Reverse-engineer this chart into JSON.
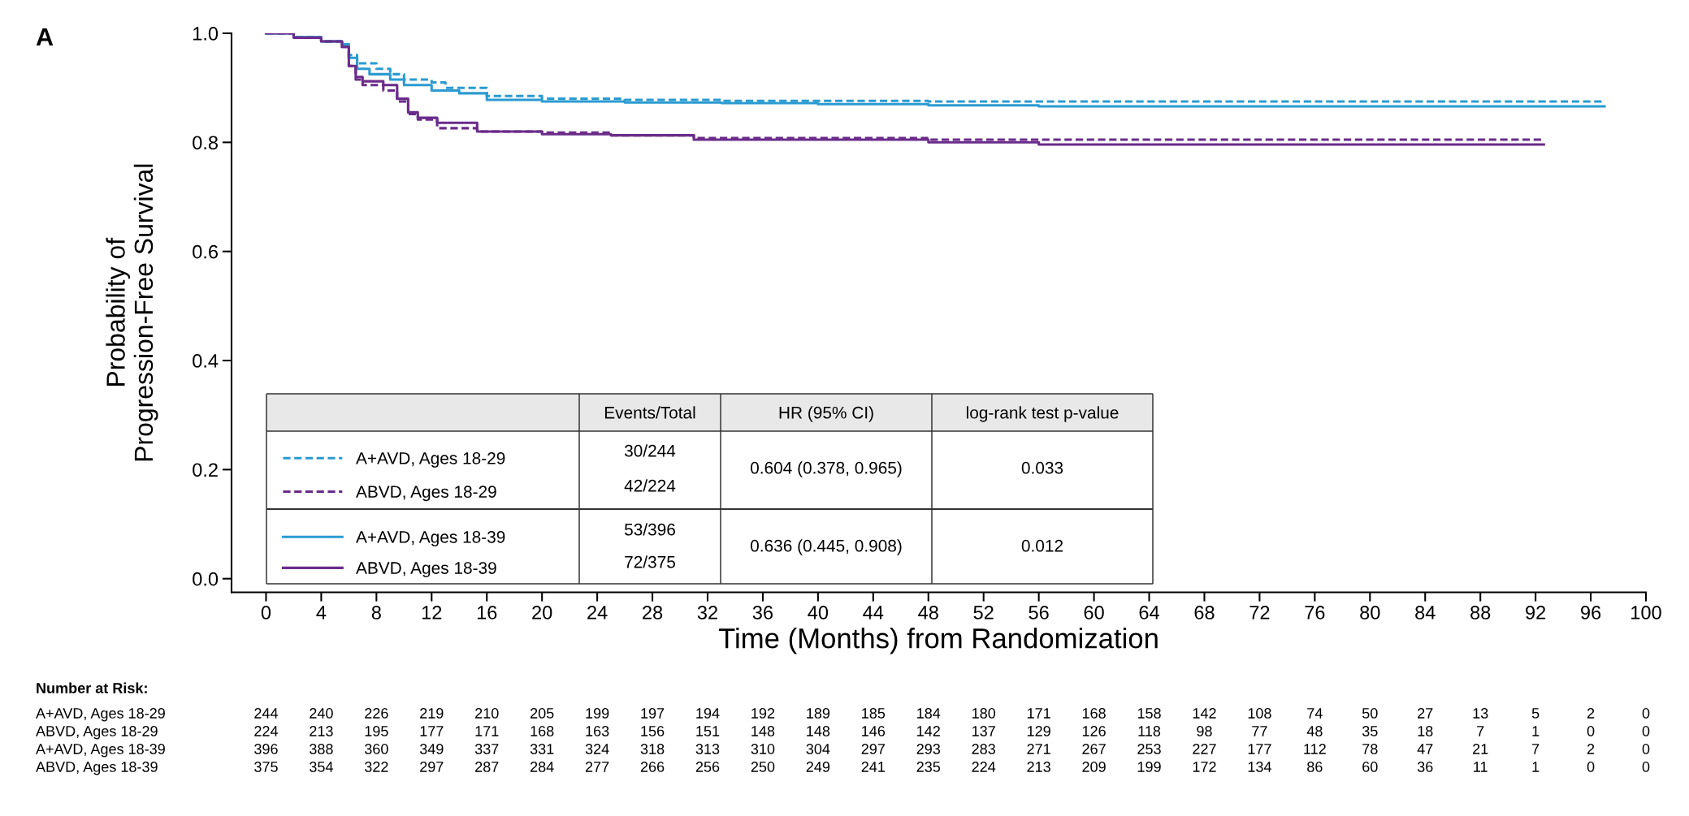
{
  "chart_data": {
    "type": "step",
    "xlabel": "Time (Months) from Randomization",
    "ylabel": "Probability of\nProgression-Free Survival",
    "xlim": [
      -2.5,
      100
    ],
    "ylim": [
      -0.025,
      1.0
    ],
    "xticks": [
      0,
      4,
      8,
      12,
      16,
      20,
      24,
      28,
      32,
      36,
      40,
      44,
      48,
      52,
      56,
      60,
      64,
      68,
      72,
      76,
      80,
      84,
      88,
      92,
      96,
      100
    ],
    "yticks": [
      {
        "value": 0,
        "label": "0.0"
      },
      0.2,
      0.4,
      0.6,
      0.8,
      {
        "value": 1,
        "label": "1.0"
      }
    ],
    "grid": false,
    "legend": "bottom left",
    "series": [
      {
        "name": "A+AVD, Ages 18-29",
        "color": "#2b9bd1",
        "line_style": "dashed",
        "x": [
          0,
          2,
          4,
          5.5,
          6,
          6.6,
          8,
          9,
          10,
          12,
          13,
          16,
          20,
          26,
          33,
          48,
          56,
          97
        ],
        "values": [
          1,
          0.993,
          0.985,
          0.98,
          0.96,
          0.945,
          0.935,
          0.925,
          0.915,
          0.91,
          0.9,
          0.885,
          0.88,
          0.878,
          0.876,
          0.875,
          0.875,
          0.875
        ]
      },
      {
        "name": "ABVD, Ages 18-29",
        "color": "#6a2c8a",
        "line_style": "dashed",
        "x": [
          0,
          2,
          4,
          5.5,
          6,
          6.5,
          7,
          8.5,
          9.5,
          10.3,
          11,
          12.4,
          15.3,
          20,
          25,
          31,
          48,
          92.6
        ],
        "values": [
          1,
          0.992,
          0.985,
          0.975,
          0.94,
          0.915,
          0.905,
          0.895,
          0.875,
          0.852,
          0.842,
          0.826,
          0.82,
          0.818,
          0.813,
          0.808,
          0.805,
          0.805
        ]
      },
      {
        "name": "A+AVD, Ages 18-39",
        "color": "#2b9bd1",
        "line_style": "solid",
        "x": [
          0,
          2,
          4,
          5.5,
          6,
          6.6,
          7.5,
          9,
          10,
          12,
          14,
          16,
          20,
          26,
          33,
          40,
          48,
          56,
          97
        ],
        "values": [
          1,
          0.993,
          0.985,
          0.98,
          0.955,
          0.935,
          0.925,
          0.915,
          0.905,
          0.895,
          0.89,
          0.878,
          0.875,
          0.873,
          0.872,
          0.87,
          0.868,
          0.866,
          0.866
        ]
      },
      {
        "name": "ABVD, Ages 18-39",
        "color": "#6a2c8a",
        "line_style": "solid",
        "x": [
          0,
          2,
          4,
          5.5,
          6,
          6.5,
          7,
          8.5,
          9.5,
          10.3,
          11,
          12.4,
          15.3,
          20,
          25,
          31,
          48,
          56,
          92.6
        ],
        "values": [
          1,
          0.992,
          0.985,
          0.975,
          0.94,
          0.92,
          0.912,
          0.905,
          0.88,
          0.855,
          0.845,
          0.836,
          0.82,
          0.815,
          0.813,
          0.805,
          0.8,
          0.796,
          0.796
        ]
      }
    ],
    "annotations": [
      "A",
      "Events/Total",
      "HR (95% CI)",
      "log-rank test p-value",
      "30/244",
      "42/224",
      "0.604 (0.378, 0.965)",
      "0.033",
      "53/396",
      "72/375",
      "0.636 (0.445, 0.908)",
      "0.012",
      "Number at Risk:",
      "244",
      "240",
      "226",
      "219",
      "210",
      "205",
      "199",
      "197",
      "194",
      "192",
      "189",
      "185",
      "184",
      "180",
      "171",
      "168",
      "158",
      "142",
      "108",
      "74",
      "50",
      "27",
      "13",
      "5",
      "2",
      "0",
      "224",
      "213",
      "195",
      "177",
      "171",
      "168",
      "163",
      "156",
      "151",
      "148",
      "148",
      "146",
      "142",
      "137",
      "129",
      "126",
      "118",
      "98",
      "77",
      "48",
      "35",
      "18",
      "7",
      "1",
      "0",
      "0",
      "396",
      "388",
      "360",
      "349",
      "337",
      "331",
      "324",
      "318",
      "313",
      "310",
      "304",
      "297",
      "293",
      "283",
      "271",
      "267",
      "253",
      "227",
      "177",
      "112",
      "78",
      "47",
      "21",
      "7",
      "2",
      "0",
      "375",
      "354",
      "322",
      "297",
      "287",
      "284",
      "277",
      "266",
      "256",
      "250",
      "249",
      "241",
      "235",
      "224",
      "213",
      "209",
      "199",
      "172",
      "134",
      "86",
      "60",
      "36",
      "11",
      "1",
      "0",
      "0"
    ]
  }
}
